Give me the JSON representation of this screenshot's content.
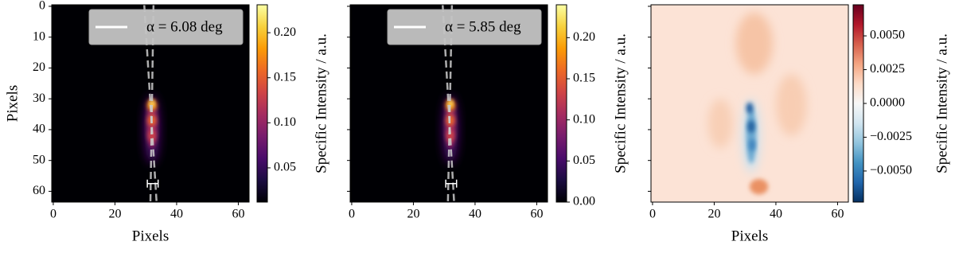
{
  "chart_data": [
    {
      "type": "heatmap",
      "xlabel": "Pixels",
      "ylabel": "Pixels",
      "xlim": [
        -0.5,
        63.5
      ],
      "ylim": [
        63.5,
        -0.5
      ],
      "xticks": [
        0,
        20,
        40,
        60
      ],
      "yticks": [
        0,
        10,
        20,
        30,
        40,
        50,
        60
      ],
      "show_ytick_labels": true,
      "legend": {
        "label": "α = 6.08 deg",
        "color": "#ffffff",
        "position": "upper right"
      },
      "colorbar": {
        "label": "Specific Intensity / a.u.",
        "colormap": "inferno",
        "lim": [
          0.012,
          0.231
        ],
        "ticks": [
          0.05,
          {
            "value": 0.1,
            "label": "0.10"
          },
          0.15,
          {
            "value": 0.2,
            "label": "0.20"
          }
        ]
      }
    },
    {
      "type": "heatmap",
      "xlim": [
        -0.5,
        63.5
      ],
      "ylim": [
        63.5,
        -0.5
      ],
      "xticks": [
        0,
        20,
        40,
        60
      ],
      "yticks": [
        0,
        10,
        20,
        30,
        40,
        50,
        60
      ],
      "show_ytick_labels": false,
      "legend": {
        "label": "α = 5.85 deg",
        "color": "#ffffff",
        "position": "upper right"
      },
      "colorbar": {
        "label": "Specific Intensity / a.u.",
        "colormap": "inferno",
        "lim": [
          0,
          0.24
        ],
        "ticks": [
          {
            "value": 0,
            "label": "0.00"
          },
          0.05,
          {
            "value": 0.1,
            "label": "0.10"
          },
          0.15,
          {
            "value": 0.2,
            "label": "0.20"
          }
        ]
      }
    },
    {
      "type": "residual",
      "xlabel": "Pixels",
      "xlim": [
        -0.5,
        63.5
      ],
      "ylim": [
        63.5,
        -0.5
      ],
      "xticks": [
        0,
        20,
        40,
        60
      ],
      "yticks": [
        0,
        10,
        20,
        30,
        40,
        50,
        60
      ],
      "show_ytick_labels": false,
      "colorbar": {
        "label": "Specific Intensity / a.u.",
        "colormap": "RdBu_r",
        "lim": [
          -0.0073,
          0.0073
        ],
        "ticks": [
          {
            "value": -0.005,
            "label": "−0.0050"
          },
          {
            "value": -0.0025,
            "label": "−0.0025"
          },
          {
            "value": 0,
            "label": "0.0000"
          },
          {
            "value": 0.0025,
            "label": "0.0025"
          },
          {
            "value": 0.005,
            "label": "0.0050"
          }
        ]
      }
    }
  ]
}
